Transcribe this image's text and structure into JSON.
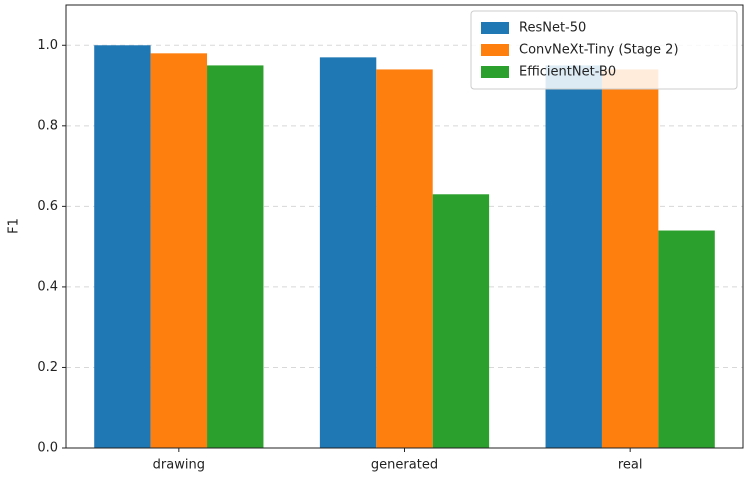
{
  "chart_data": {
    "type": "bar",
    "ylabel": "F1",
    "categories": [
      "drawing",
      "generated",
      "real"
    ],
    "series": [
      {
        "name": "ResNet-50",
        "color": "#1f77b4",
        "values": [
          1.0,
          0.97,
          0.95
        ]
      },
      {
        "name": "ConvNeXt-Tiny (Stage 2)",
        "color": "#ff7f0e",
        "values": [
          0.98,
          0.94,
          0.94
        ]
      },
      {
        "name": "EfficientNet-B0",
        "color": "#2ca02c",
        "values": [
          0.95,
          0.63,
          0.54
        ]
      }
    ],
    "ylim": [
      0,
      1.1
    ],
    "yticks": [
      {
        "value": 0,
        "label": "0.0"
      },
      {
        "value": 0.2,
        "label": "0.2"
      },
      {
        "value": 0.4,
        "label": "0.4"
      },
      {
        "value": 0.6,
        "label": "0.6"
      },
      {
        "value": 0.8,
        "label": "0.8"
      },
      {
        "value": 1.0,
        "label": "1.0"
      }
    ],
    "grid": true,
    "legend": "upper right"
  }
}
